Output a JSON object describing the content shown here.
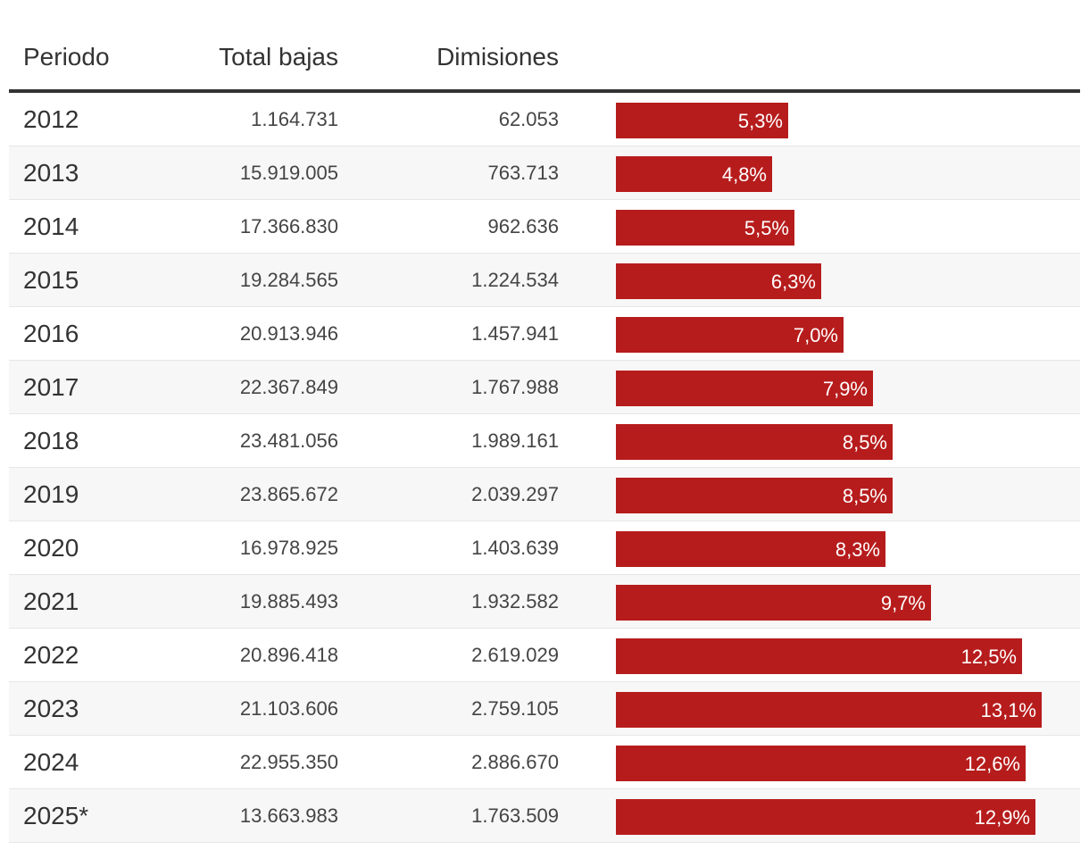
{
  "colors": {
    "bar": "#b71c1c",
    "text": "#333333",
    "header_rule": "#333333",
    "row_alt": "#f7f7f7"
  },
  "headers": {
    "period": "Periodo",
    "total": "Total bajas",
    "dimisiones": "Dimisiones",
    "bar": ""
  },
  "chart_data": {
    "type": "table",
    "title": "",
    "columns": [
      "Periodo",
      "Total bajas",
      "Dimisiones",
      ""
    ],
    "xlim": [
      0,
      14
    ],
    "rows": [
      {
        "period": "2012",
        "total": "1.164.731",
        "dimisiones": "62.053",
        "pct": 5.3,
        "pct_label": "5,3%"
      },
      {
        "period": "2013",
        "total": "15.919.005",
        "dimisiones": "763.713",
        "pct": 4.8,
        "pct_label": "4,8%"
      },
      {
        "period": "2014",
        "total": "17.366.830",
        "dimisiones": "962.636",
        "pct": 5.5,
        "pct_label": "5,5%"
      },
      {
        "period": "2015",
        "total": "19.284.565",
        "dimisiones": "1.224.534",
        "pct": 6.3,
        "pct_label": "6,3%"
      },
      {
        "period": "2016",
        "total": "20.913.946",
        "dimisiones": "1.457.941",
        "pct": 7.0,
        "pct_label": "7,0%"
      },
      {
        "period": "2017",
        "total": "22.367.849",
        "dimisiones": "1.767.988",
        "pct": 7.9,
        "pct_label": "7,9%"
      },
      {
        "period": "2018",
        "total": "23.481.056",
        "dimisiones": "1.989.161",
        "pct": 8.5,
        "pct_label": "8,5%"
      },
      {
        "period": "2019",
        "total": "23.865.672",
        "dimisiones": "2.039.297",
        "pct": 8.5,
        "pct_label": "8,5%"
      },
      {
        "period": "2020",
        "total": "16.978.925",
        "dimisiones": "1.403.639",
        "pct": 8.3,
        "pct_label": "8,3%"
      },
      {
        "period": "2021",
        "total": "19.885.493",
        "dimisiones": "1.932.582",
        "pct": 9.7,
        "pct_label": "9,7%"
      },
      {
        "period": "2022",
        "total": "20.896.418",
        "dimisiones": "2.619.029",
        "pct": 12.5,
        "pct_label": "12,5%"
      },
      {
        "period": "2023",
        "total": "21.103.606",
        "dimisiones": "2.759.105",
        "pct": 13.1,
        "pct_label": "13,1%"
      },
      {
        "period": "2024",
        "total": "22.955.350",
        "dimisiones": "2.886.670",
        "pct": 12.6,
        "pct_label": "12,6%"
      },
      {
        "period": "2025*",
        "total": "13.663.983",
        "dimisiones": "1.763.509",
        "pct": 12.9,
        "pct_label": "12,9%"
      }
    ]
  }
}
